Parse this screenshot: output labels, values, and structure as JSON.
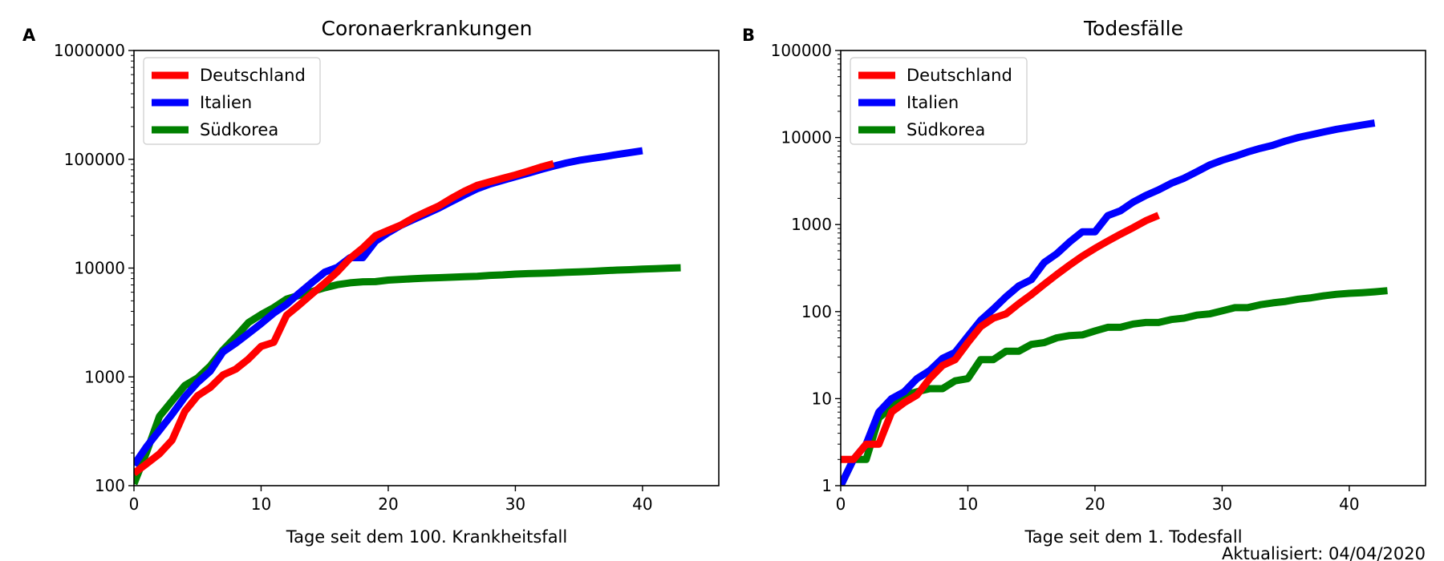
{
  "chart_data": [
    {
      "panel": "A",
      "type": "line",
      "title": "Coronaerkrankungen",
      "xlabel": "Tage seit dem 100. Krankheitsfall",
      "ylabel": "",
      "yscale": "log",
      "xlim": [
        0,
        46
      ],
      "ylim": [
        100,
        1000000
      ],
      "xticks": [
        0,
        10,
        20,
        30,
        40
      ],
      "yticks": [
        100,
        1000,
        10000,
        100000,
        1000000
      ],
      "grid": false,
      "legend": "top-left",
      "series": [
        {
          "name": "Südkorea",
          "color": "#008000",
          "x": [
            0,
            1,
            2,
            3,
            4,
            5,
            6,
            7,
            8,
            9,
            10,
            11,
            12,
            13,
            14,
            15,
            16,
            17,
            18,
            19,
            20,
            21,
            22,
            23,
            24,
            25,
            26,
            27,
            28,
            29,
            30,
            31,
            32,
            33,
            34,
            35,
            36,
            37,
            38,
            39,
            40,
            41,
            42,
            43
          ],
          "y": [
            104,
            204,
            433,
            602,
            833,
            977,
            1261,
            1766,
            2337,
            3150,
            3736,
            4335,
            5186,
            5621,
            6088,
            6593,
            7041,
            7313,
            7478,
            7513,
            7755,
            7869,
            7979,
            8086,
            8162,
            8236,
            8320,
            8413,
            8565,
            8652,
            8799,
            8897,
            8961,
            9037,
            9137,
            9241,
            9332,
            9478,
            9583,
            9661,
            9786,
            9887,
            9976,
            10062
          ]
        },
        {
          "name": "Italien",
          "color": "#0000ff",
          "x": [
            0,
            1,
            2,
            3,
            4,
            5,
            6,
            7,
            8,
            9,
            10,
            11,
            12,
            13,
            14,
            15,
            16,
            17,
            18,
            19,
            20,
            21,
            22,
            23,
            24,
            25,
            26,
            27,
            28,
            29,
            30,
            31,
            32,
            33,
            34,
            35,
            36,
            37,
            38,
            39,
            40
          ],
          "y": [
            155,
            229,
            322,
            453,
            655,
            888,
            1128,
            1694,
            2036,
            2502,
            3089,
            3858,
            4636,
            5883,
            7375,
            9172,
            10149,
            12462,
            12462,
            17660,
            21157,
            24747,
            27980,
            31506,
            35713,
            41035,
            47021,
            53578,
            59138,
            63927,
            69176,
            74386,
            80589,
            86498,
            92472,
            97689,
            101739,
            105792,
            110574,
            115242,
            119827
          ]
        },
        {
          "name": "Deutschland",
          "color": "#ff0000",
          "x": [
            0,
            1,
            2,
            3,
            4,
            5,
            6,
            7,
            8,
            9,
            10,
            11,
            12,
            13,
            14,
            15,
            16,
            17,
            18,
            19,
            20,
            21,
            22,
            23,
            24,
            25,
            26,
            27,
            28,
            29,
            30,
            31,
            32,
            33
          ],
          "y": [
            130,
            159,
            196,
            262,
            482,
            670,
            799,
            1040,
            1176,
            1457,
            1908,
            2078,
            3675,
            4585,
            5795,
            7272,
            9257,
            12327,
            15320,
            19848,
            22213,
            24873,
            29056,
            32986,
            37323,
            43938,
            50871,
            57695,
            62095,
            66885,
            71808,
            77872,
            84794,
            91159
          ]
        }
      ]
    },
    {
      "panel": "B",
      "type": "line",
      "title": "Todesfälle",
      "xlabel": "Tage seit dem 1. Todesfall",
      "ylabel": "",
      "yscale": "log",
      "xlim": [
        0,
        46
      ],
      "ylim": [
        1,
        100000
      ],
      "xticks": [
        0,
        10,
        20,
        30,
        40
      ],
      "yticks": [
        1,
        10,
        100,
        1000,
        10000,
        100000
      ],
      "grid": false,
      "legend": "top-left",
      "series": [
        {
          "name": "Südkorea",
          "color": "#008000",
          "x": [
            0,
            1,
            2,
            3,
            4,
            5,
            6,
            7,
            8,
            9,
            10,
            11,
            12,
            13,
            14,
            15,
            16,
            17,
            18,
            19,
            20,
            21,
            22,
            23,
            24,
            25,
            26,
            27,
            28,
            29,
            30,
            31,
            32,
            33,
            34,
            35,
            36,
            37,
            38,
            39,
            40,
            41,
            42,
            43
          ],
          "y": [
            1,
            2,
            2,
            6,
            8,
            11,
            12,
            13,
            13,
            16,
            17,
            28,
            28,
            35,
            35,
            42,
            44,
            50,
            53,
            54,
            60,
            66,
            66,
            72,
            75,
            75,
            81,
            84,
            91,
            94,
            102,
            111,
            111,
            120,
            126,
            131,
            139,
            144,
            152,
            158,
            162,
            165,
            169,
            174
          ]
        },
        {
          "name": "Italien",
          "color": "#0000ff",
          "x": [
            0,
            1,
            2,
            3,
            4,
            5,
            6,
            7,
            8,
            9,
            10,
            11,
            12,
            13,
            14,
            15,
            16,
            17,
            18,
            19,
            20,
            21,
            22,
            23,
            24,
            25,
            26,
            27,
            28,
            29,
            30,
            31,
            32,
            33,
            34,
            35,
            36,
            37,
            38,
            39,
            40,
            41,
            42
          ],
          "y": [
            1,
            2,
            3,
            7,
            10,
            12,
            17,
            21,
            29,
            34,
            52,
            79,
            107,
            148,
            197,
            233,
            366,
            463,
            631,
            827,
            827,
            1266,
            1441,
            1809,
            2158,
            2503,
            2978,
            3405,
            4032,
            4825,
            5476,
            6077,
            6820,
            7503,
            8165,
            9134,
            10023,
            10779,
            11591,
            12428,
            13155,
            13915,
            14681
          ]
        },
        {
          "name": "Deutschland",
          "color": "#ff0000",
          "x": [
            0,
            1,
            2,
            3,
            4,
            5,
            6,
            7,
            8,
            9,
            10,
            11,
            12,
            13,
            14,
            15,
            16,
            17,
            18,
            19,
            20,
            21,
            22,
            23,
            24,
            25
          ],
          "y": [
            2,
            2,
            3,
            3,
            7,
            9,
            11,
            17,
            24,
            28,
            44,
            67,
            84,
            94,
            123,
            157,
            206,
            267,
            342,
            433,
            533,
            645,
            775,
            920,
            1107,
            1275
          ]
        }
      ]
    }
  ],
  "footer": "Aktualisiert: 04/04/2020"
}
